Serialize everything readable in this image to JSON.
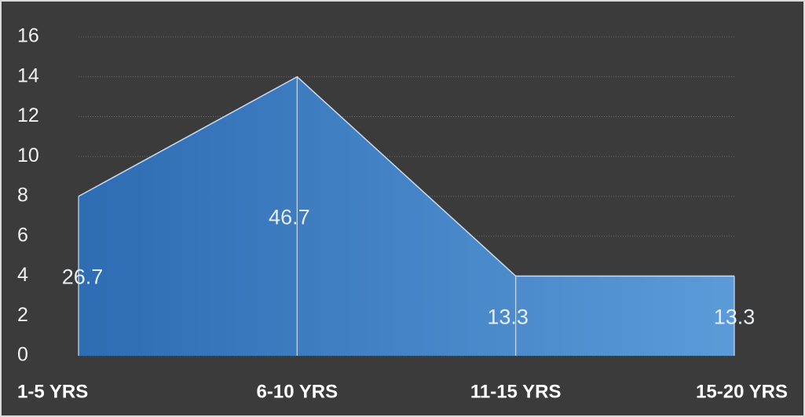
{
  "chart_data": {
    "type": "area",
    "categories": [
      "1-5 YRS",
      "6-10 YRS",
      "11-15 YRS",
      "15-20 YRS"
    ],
    "values": [
      8,
      14,
      4,
      4
    ],
    "data_labels": [
      26.7,
      46.7,
      13.3,
      13.3
    ],
    "color_start": "#2e6cb3",
    "color_end": "#5b9bd8",
    "ylim": [
      0,
      16
    ],
    "yticks": [
      0,
      2,
      4,
      6,
      8,
      10,
      12,
      14,
      16
    ],
    "grid": true
  }
}
